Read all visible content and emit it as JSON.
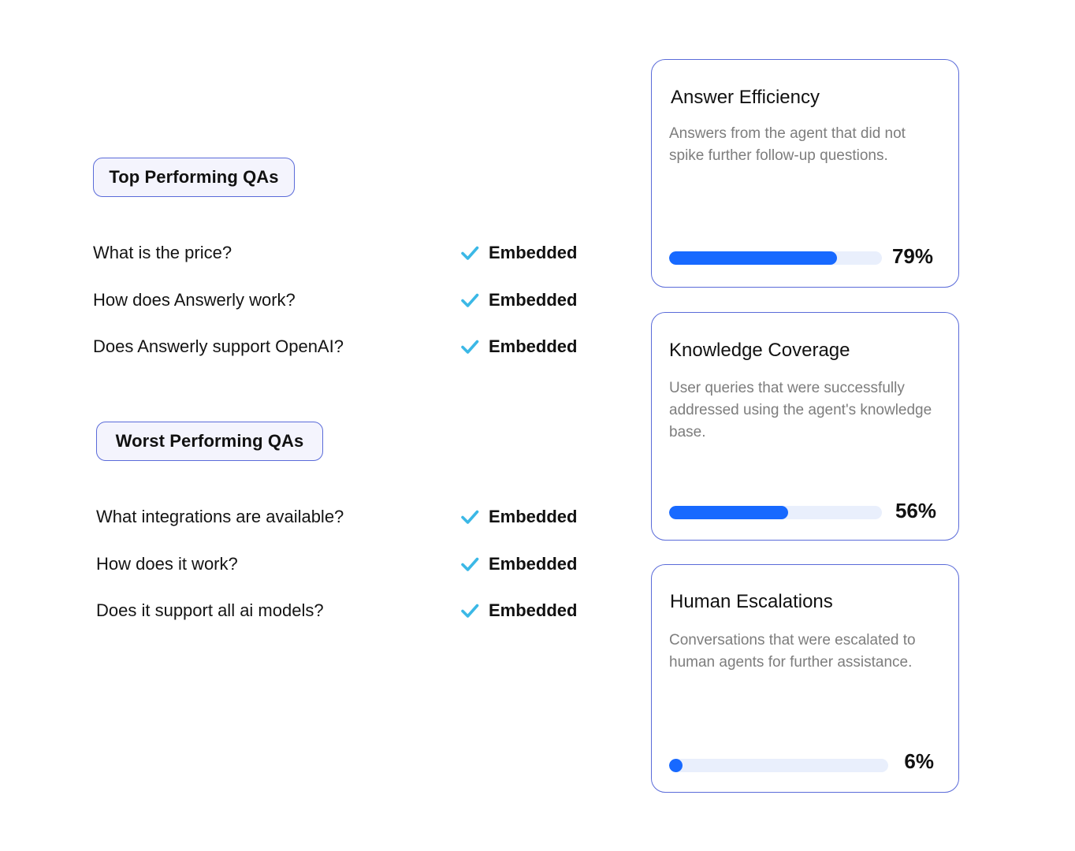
{
  "top_section": {
    "label": "Top Performing QAs",
    "items": [
      {
        "question": "What is the price?",
        "status": "Embedded",
        "status_icon": "check-icon"
      },
      {
        "question": "How does Answerly work?",
        "status": "Embedded",
        "status_icon": "check-icon"
      },
      {
        "question": "Does Answerly support OpenAI?",
        "status": "Embedded",
        "status_icon": "check-icon"
      }
    ]
  },
  "worst_section": {
    "label": "Worst Performing QAs",
    "items": [
      {
        "question": "What integrations are available?",
        "status": "Embedded",
        "status_icon": "check-icon"
      },
      {
        "question": "How does it work?",
        "status": "Embedded",
        "status_icon": "check-icon"
      },
      {
        "question": "Does it support all ai models?",
        "status": "Embedded",
        "status_icon": "check-icon"
      }
    ]
  },
  "metrics": [
    {
      "title": "Answer Efficiency",
      "description": "Answers from the agent that did not spike further follow-up questions.",
      "value_label": "79%",
      "progress": 0.79
    },
    {
      "title": "Knowledge Coverage",
      "description": "User queries that were successfully addressed using the agent's knowledge base.",
      "value_label": "56%",
      "progress": 0.56
    },
    {
      "title": "Human Escalations",
      "description": "Conversations that were escalated to human agents for further assistance.",
      "value_label": "6%",
      "progress": 0.06
    }
  ],
  "colors": {
    "accent_border": "#5a6bd9",
    "pill_background": "#f4f4fd",
    "check": "#3bb8e6",
    "progress_fill": "#1769ff",
    "progress_track": "#e9effc",
    "description_text": "#7d7d7d"
  }
}
